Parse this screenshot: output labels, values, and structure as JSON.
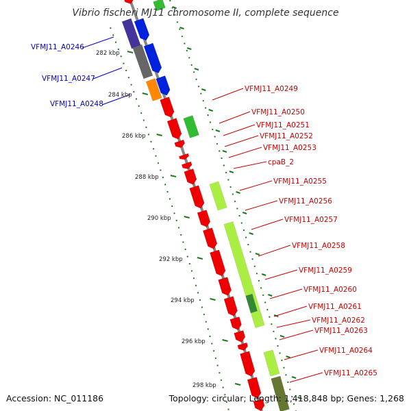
{
  "title": "Vibrio fischeri MJ11 chromosome II, complete sequence",
  "footer": {
    "accession": "Accession: NC_011186",
    "summary": "Topology: circular; Length: 1,418,848 bp; Genes: 1,268"
  },
  "colors": {
    "left_label": "#0000cc",
    "right_label": "#cc0000",
    "backbone": "#888888",
    "tick": "#1a7a1a",
    "red_feature": "#ee0000",
    "blue_feature": "#0022dd",
    "navy_feature": "#443399",
    "gray_feature": "#666666",
    "orange_feature": "#ff8800",
    "lime_feature": "#aaee44",
    "green_feature": "#33bb33",
    "dark_green_feature": "#338833",
    "olive_feature": "#667733"
  },
  "ticks": [
    {
      "label": "282 kbp",
      "pos": 282
    },
    {
      "label": "284 kbp",
      "pos": 284
    },
    {
      "label": "286 kbp",
      "pos": 286
    },
    {
      "label": "288 kbp",
      "pos": 288
    },
    {
      "label": "290 kbp",
      "pos": 290
    },
    {
      "label": "292 kbp",
      "pos": 292
    },
    {
      "label": "294 kbp",
      "pos": 294
    },
    {
      "label": "296 kbp",
      "pos": 296
    },
    {
      "label": "298 kbp",
      "pos": 298
    }
  ],
  "left_genes": [
    {
      "label": "VFMJ11_A0246"
    },
    {
      "label": "VFMJ11_A0247"
    },
    {
      "label": "VFMJ11_A0248"
    }
  ],
  "right_genes": [
    {
      "label": "VFMJ11_A0249"
    },
    {
      "label": "VFMJ11_A0250"
    },
    {
      "label": "VFMJ11_A0251"
    },
    {
      "label": "VFMJ11_A0252"
    },
    {
      "label": "VFMJ11_A0253"
    },
    {
      "label": "cpaB_2"
    },
    {
      "label": "VFMJ11_A0255"
    },
    {
      "label": "VFMJ11_A0256"
    },
    {
      "label": "VFMJ11_A0257"
    },
    {
      "label": "VFMJ11_A0258"
    },
    {
      "label": "VFMJ11_A0259"
    },
    {
      "label": "VFMJ11_A0260"
    },
    {
      "label": "VFMJ11_A0261"
    },
    {
      "label": "VFMJ11_A0262"
    },
    {
      "label": "VFMJ11_A0263"
    },
    {
      "label": "VFMJ11_A0264"
    },
    {
      "label": "VFMJ11_A0265"
    }
  ]
}
